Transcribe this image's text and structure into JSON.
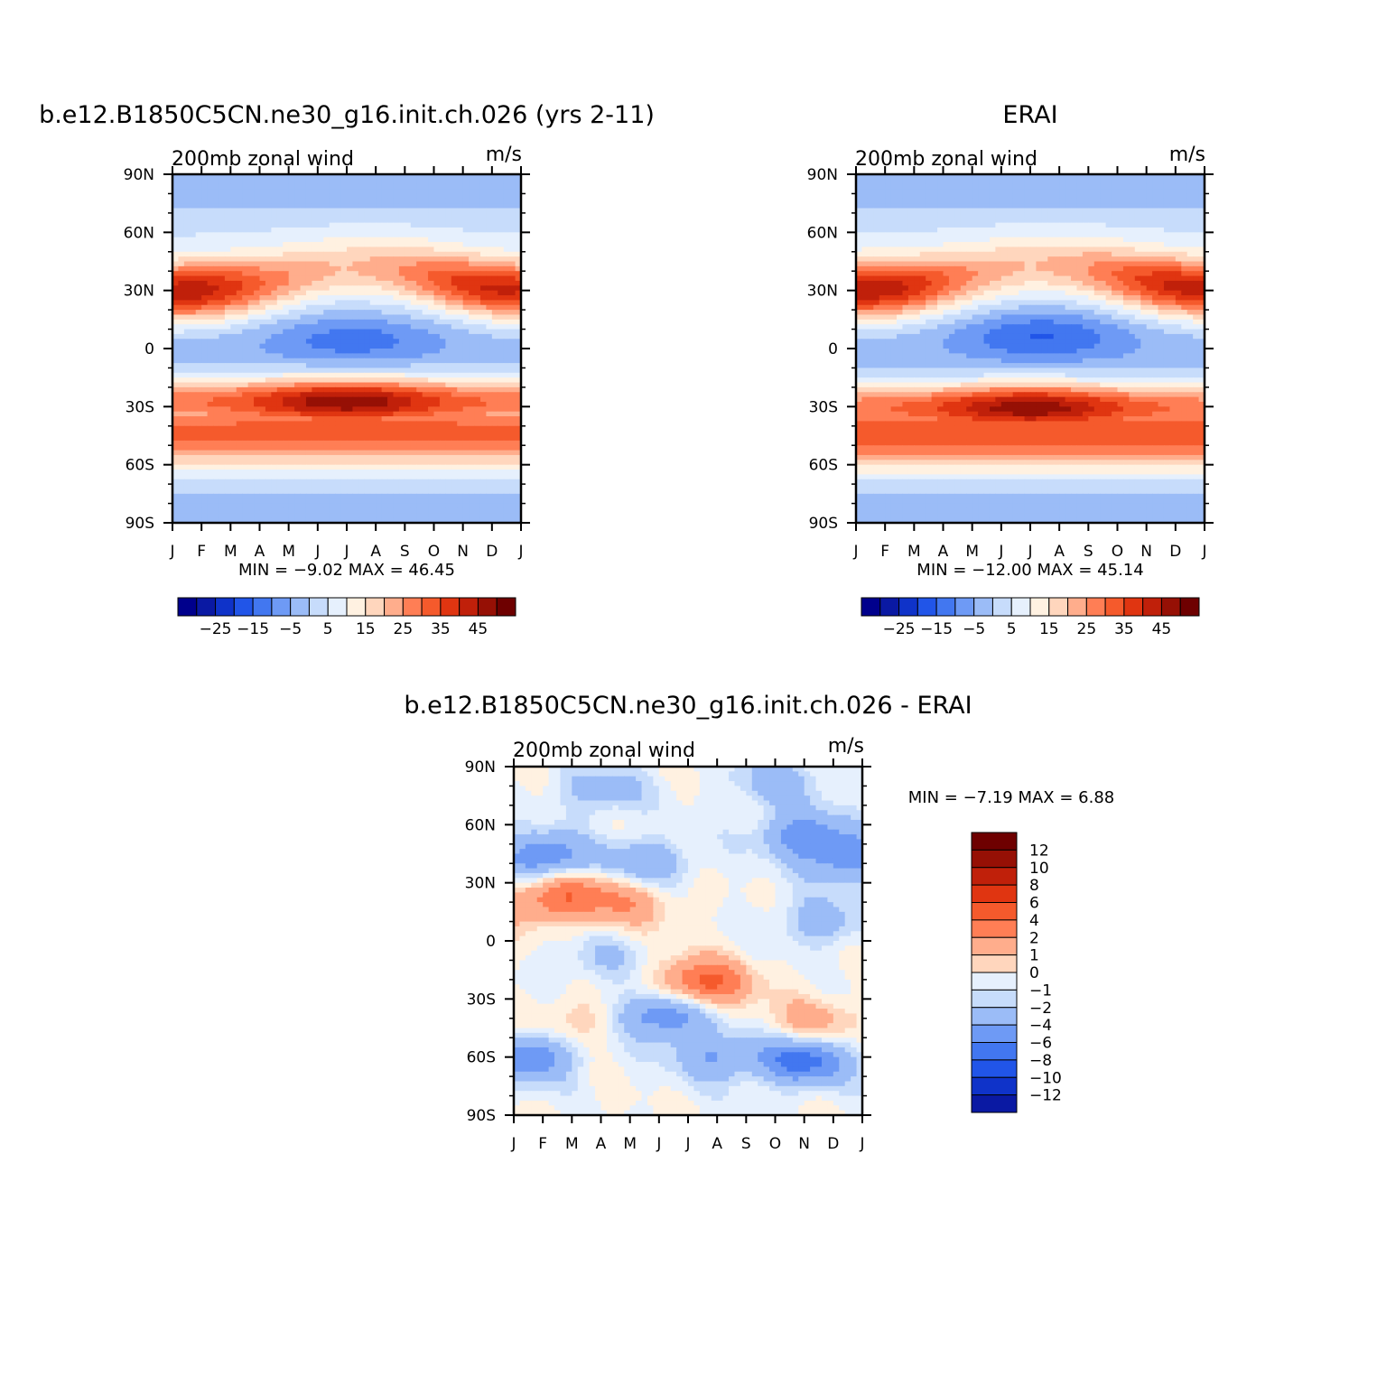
{
  "palette": {
    "full": [
      "#00008c",
      "#0a19a3",
      "#0f33c9",
      "#2155e8",
      "#4277f0",
      "#6e9af5",
      "#9bbcf7",
      "#c7dcfb",
      "#e6f0fd",
      "#fff1e1",
      "#ffd6bd",
      "#ffad8c",
      "#ff7e55",
      "#f55a2c",
      "#e03511",
      "#c0200a",
      "#961005",
      "#6e0000"
    ],
    "diff": [
      "#00008c",
      "#0a19a3",
      "#0f33c9",
      "#2155e8",
      "#4277f0",
      "#6e9af5",
      "#9bbcf7",
      "#c7dcfb",
      "#e6f0fd",
      "#fff1e1",
      "#ffd6bd",
      "#ffad8c",
      "#ff7e55",
      "#f55a2c",
      "#e03511",
      "#c0200a",
      "#961005",
      "#6e0000"
    ]
  },
  "chart_data": [
    {
      "type": "heatmap",
      "title": "b.e12.B1850C5CN.ne30_g16.init.ch.026 (yrs 2-11)",
      "subtitle_left": "200mb zonal wind",
      "units": "m/s",
      "x_categories": [
        "J",
        "F",
        "M",
        "A",
        "M",
        "J",
        "J",
        "A",
        "S",
        "O",
        "N",
        "D",
        "J"
      ],
      "y_ticks": [
        "90N",
        "60N",
        "30N",
        "0",
        "30S",
        "60S",
        "90S"
      ],
      "y_range": [
        -90,
        90
      ],
      "stats_text": "MIN = -9.02 MAX = 46.45",
      "min": -9.02,
      "max": 46.45,
      "colorbar": {
        "labels": [
          "-25",
          "-15",
          "-5",
          "5",
          "15",
          "25",
          "35",
          "45"
        ],
        "levels": [
          -30,
          -25,
          -20,
          -15,
          -10,
          -5,
          0,
          5,
          10,
          15,
          20,
          25,
          30,
          35,
          40,
          45,
          50
        ]
      },
      "features": {
        "nh_jet": {
          "lat": 29,
          "peak_months": [
            1.5,
            12.3
          ],
          "peak_values": [
            43,
            41
          ],
          "summer_value": 18
        },
        "equatorial_easterly": {
          "lat": 5,
          "peak_month": 7.2,
          "peak_value": -9
        },
        "sh_jet": {
          "lat": -27,
          "peak_month": 7.0,
          "peak_value": 46.5
        },
        "sh_mid": {
          "lat": -45,
          "value": 31
        },
        "polar_values": [
          -4,
          -2
        ]
      }
    },
    {
      "type": "heatmap",
      "title": "ERAI",
      "subtitle_left": "200mb zonal wind",
      "units": "m/s",
      "x_categories": [
        "J",
        "F",
        "M",
        "A",
        "M",
        "J",
        "J",
        "A",
        "S",
        "O",
        "N",
        "D",
        "J"
      ],
      "y_ticks": [
        "90N",
        "60N",
        "30N",
        "0",
        "30S",
        "60S",
        "90S"
      ],
      "y_range": [
        -90,
        90
      ],
      "stats_text": "MIN = -12.00 MAX = 45.14",
      "min": -12.0,
      "max": 45.14,
      "colorbar": {
        "labels": [
          "-25",
          "-15",
          "-5",
          "5",
          "15",
          "25",
          "35",
          "45"
        ],
        "levels": [
          -30,
          -25,
          -20,
          -15,
          -10,
          -5,
          0,
          5,
          10,
          15,
          20,
          25,
          30,
          35,
          40,
          45,
          50
        ]
      },
      "features": {
        "nh_jet": {
          "lat": 30,
          "peak_months": [
            1.5,
            12.5
          ],
          "peak_values": [
            44,
            42
          ],
          "summer_value": 18
        },
        "equatorial_easterly": {
          "lat": 7,
          "peak_month": 7.4,
          "peak_value": -12
        },
        "sh_jet": {
          "lat": -30,
          "peak_month": 7.0,
          "peak_value": 45
        },
        "sh_mid": {
          "lat": -46,
          "value": 32
        },
        "polar_values": [
          -4,
          -4
        ]
      }
    },
    {
      "type": "heatmap",
      "title": "b.e12.B1850C5CN.ne30_g16.init.ch.026 - ERAI",
      "subtitle_left": "200mb zonal wind",
      "units": "m/s",
      "x_categories": [
        "J",
        "F",
        "M",
        "A",
        "M",
        "J",
        "J",
        "A",
        "S",
        "O",
        "N",
        "D",
        "J"
      ],
      "y_ticks": [
        "90N",
        "60N",
        "30N",
        "0",
        "30S",
        "60S",
        "90S"
      ],
      "y_range": [
        -90,
        90
      ],
      "stats_text": "MIN = -7.19 MAX = 6.88",
      "min": -7.19,
      "max": 6.88,
      "colorbar": {
        "labels": [
          "12",
          "10",
          "8",
          "6",
          "4",
          "2",
          "1",
          "0",
          "-1",
          "-2",
          "-4",
          "-6",
          "-8",
          "-10",
          "-12"
        ],
        "levels": [
          -14,
          -12,
          -10,
          -8,
          -6,
          -4,
          -2,
          -1,
          0,
          1,
          2,
          4,
          6,
          8,
          10,
          12,
          14
        ]
      },
      "anomalies": [
        {
          "month": 7.5,
          "lat": -22,
          "value": 7
        },
        {
          "month": 3.0,
          "lat": 24,
          "value": 5
        },
        {
          "month": 5.0,
          "lat": 20,
          "value": 3
        },
        {
          "month": 1.0,
          "lat": 18,
          "value": 3
        },
        {
          "month": 2.0,
          "lat": 43,
          "value": -6
        },
        {
          "month": 5.5,
          "lat": 40,
          "value": -4
        },
        {
          "month": 11.0,
          "lat": 55,
          "value": -5
        },
        {
          "month": 12.6,
          "lat": 42,
          "value": -5
        },
        {
          "month": 1.5,
          "lat": -60,
          "value": -6
        },
        {
          "month": 11.0,
          "lat": -62,
          "value": -7
        },
        {
          "month": 6.2,
          "lat": -38,
          "value": -6
        },
        {
          "month": 8.0,
          "lat": -60,
          "value": -4
        },
        {
          "month": 4.0,
          "lat": 78,
          "value": -3
        },
        {
          "month": 10.0,
          "lat": 82,
          "value": -3
        },
        {
          "month": 11.3,
          "lat": -42,
          "value": 3
        },
        {
          "month": 3.0,
          "lat": -42,
          "value": 2
        },
        {
          "month": 11.5,
          "lat": 10,
          "value": -3
        },
        {
          "month": 4.0,
          "lat": -10,
          "value": -2
        }
      ]
    }
  ]
}
